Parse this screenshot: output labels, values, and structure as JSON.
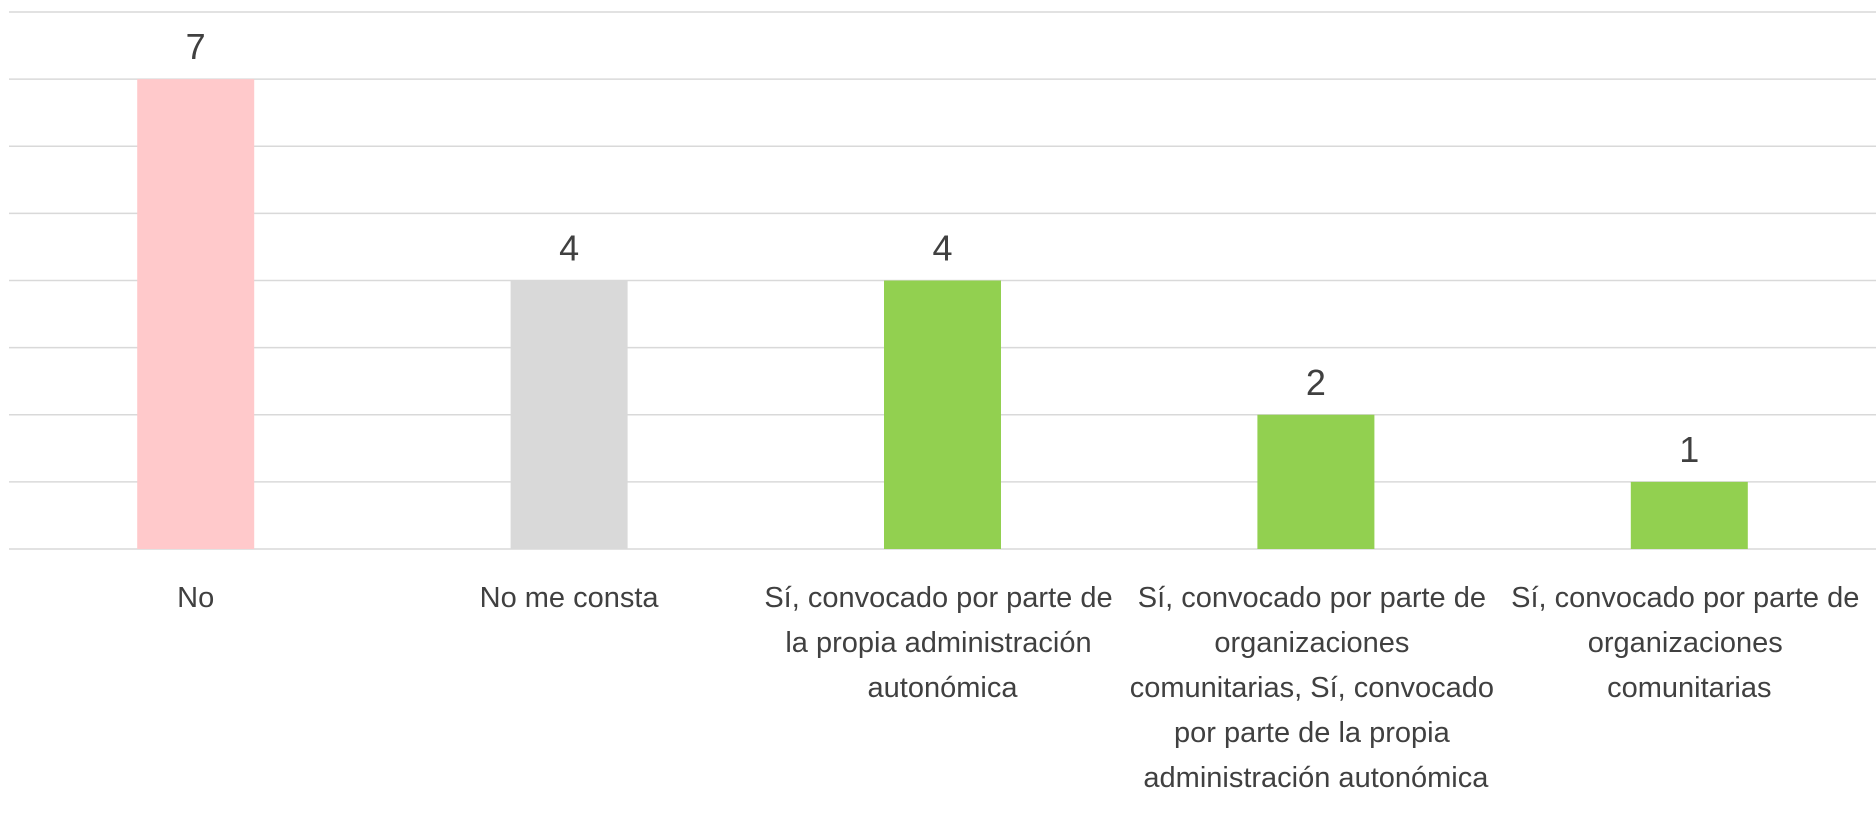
{
  "chart_data": {
    "type": "bar",
    "categories": [
      "No",
      "No me consta",
      "Sí, convocado por parte de la propia administración autonómica",
      "Sí, convocado por parte de organizaciones comunitarias, Sí, convocado por parte de la propia administración autonómica",
      "Sí, convocado por parte de organizaciones comunitarias"
    ],
    "values": [
      7,
      4,
      4,
      2,
      1
    ],
    "colors": [
      "#ffc9cb",
      "#d9d9d9",
      "#92d050",
      "#92d050",
      "#92d050"
    ],
    "ylim": [
      0,
      8
    ],
    "yticks": [
      0,
      1,
      2,
      3,
      4,
      5,
      6,
      7,
      8
    ],
    "grid": true
  }
}
